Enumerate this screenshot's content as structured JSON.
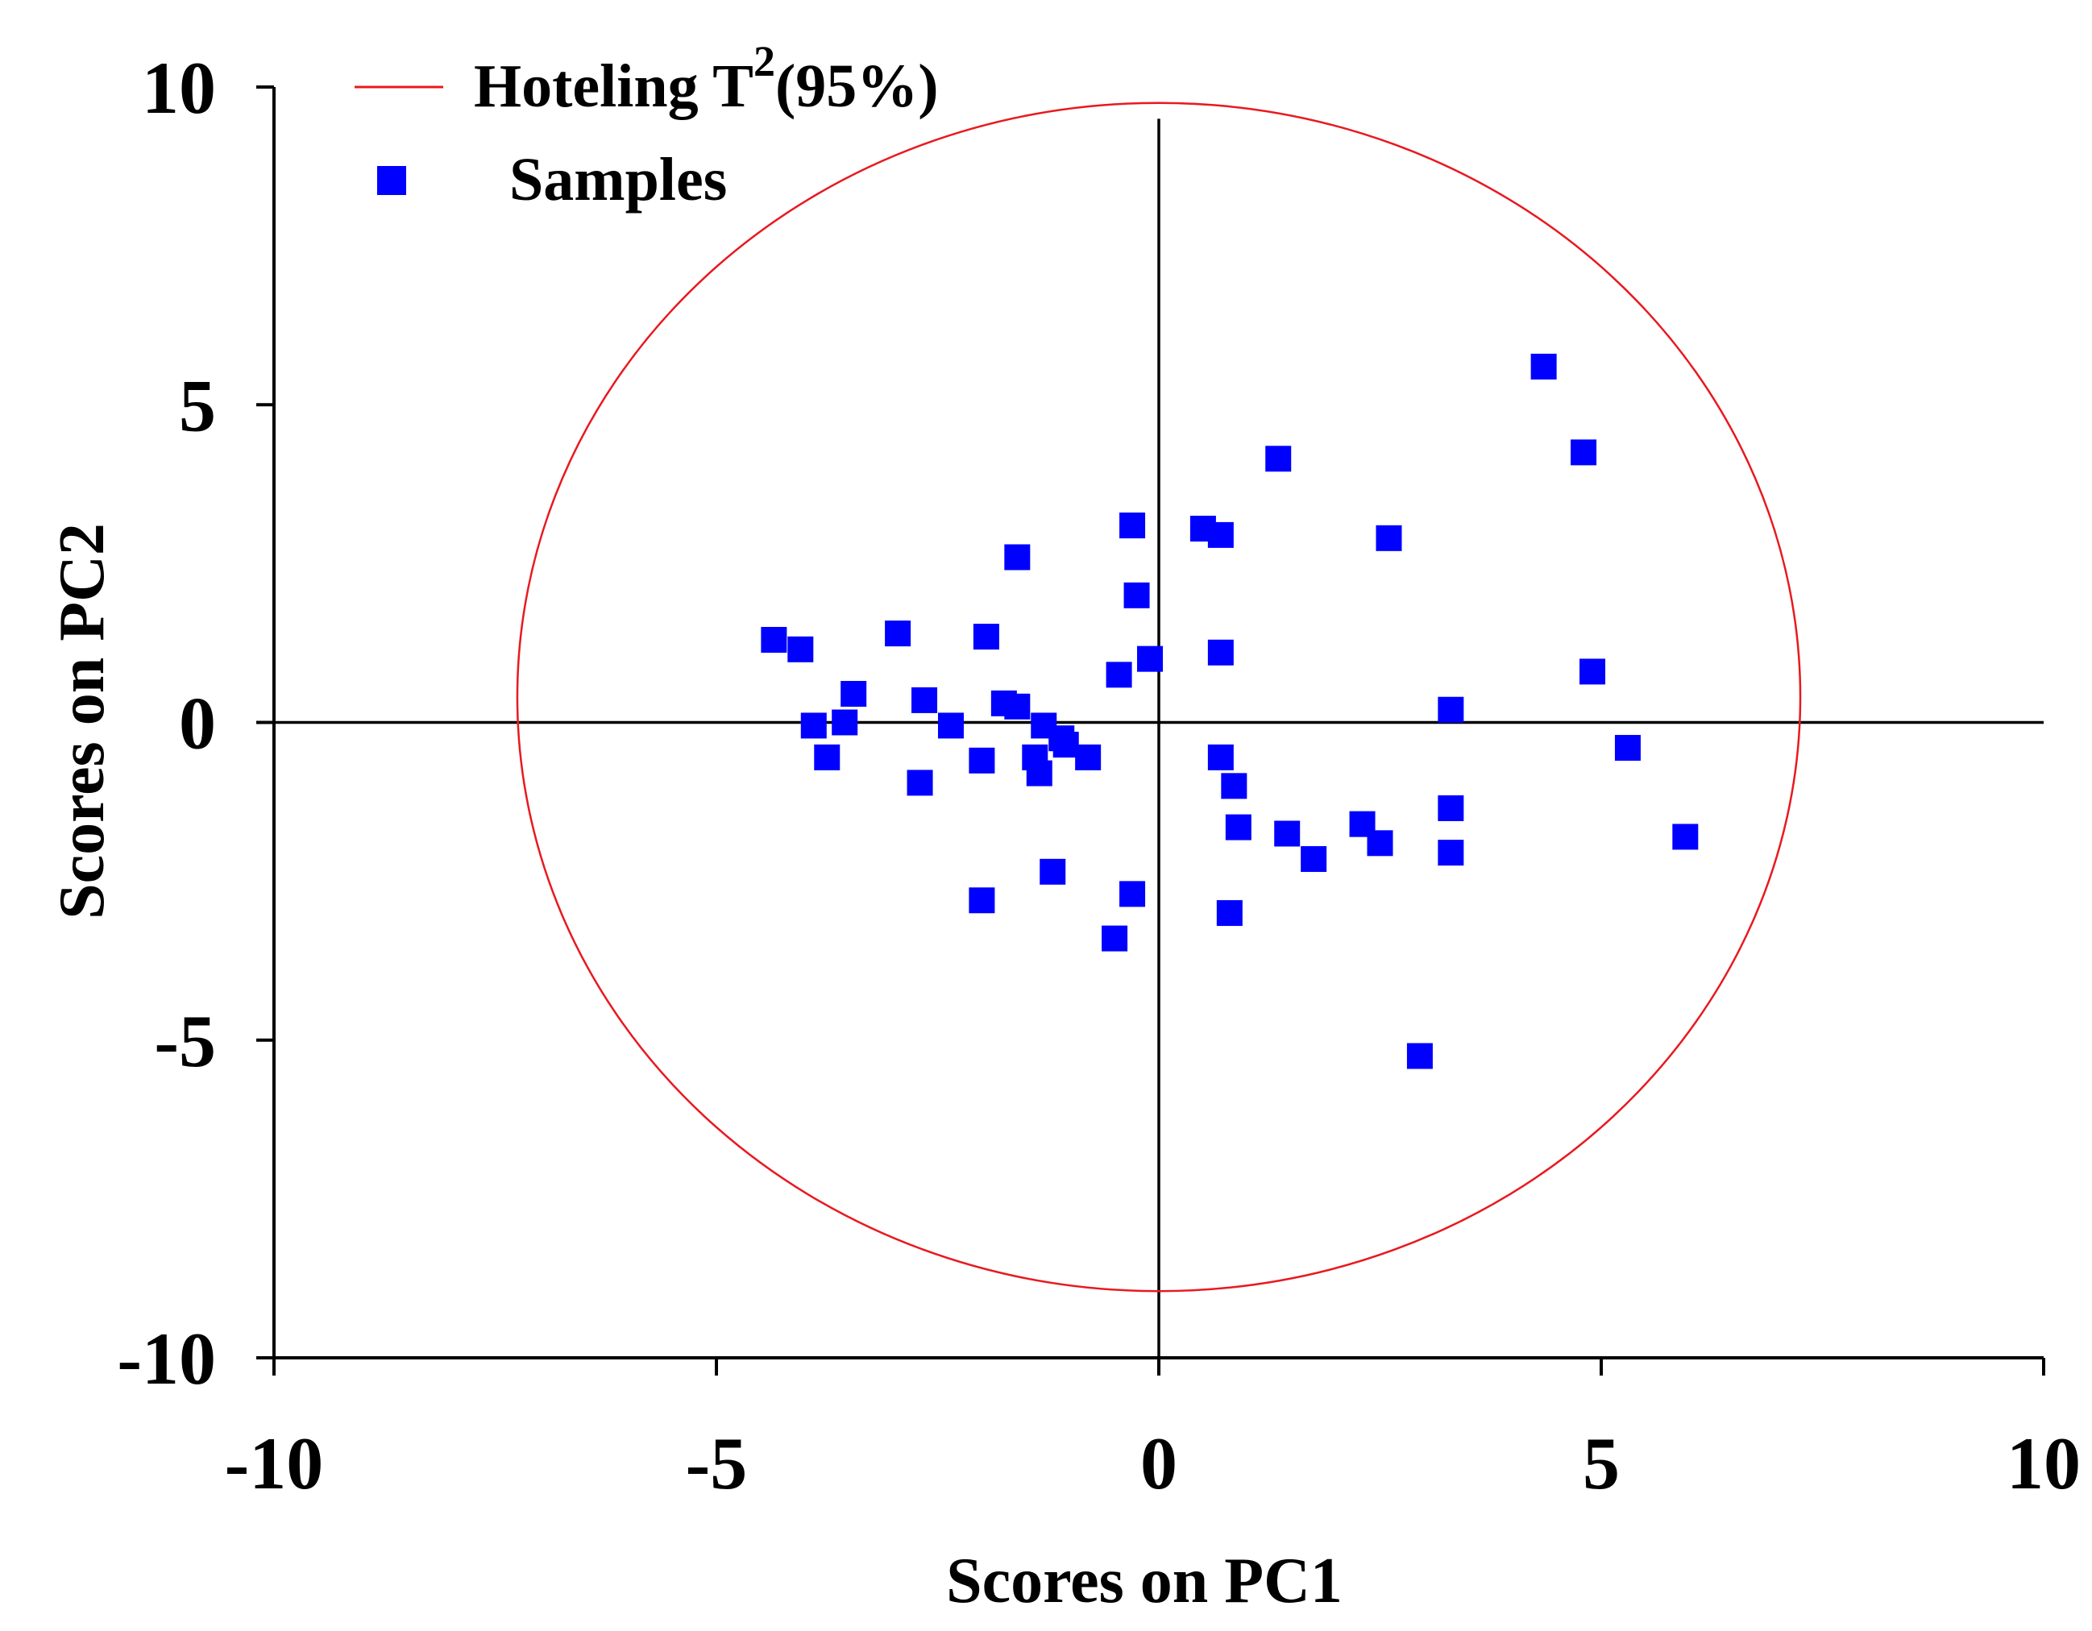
{
  "chart_data": {
    "type": "scatter",
    "title": "",
    "xlabel": "Scores on PC1",
    "ylabel": "Scores on PC2",
    "xlim": [
      -10,
      10
    ],
    "ylim": [
      -10,
      10
    ],
    "xticks": [
      -10,
      -5,
      0,
      5,
      10
    ],
    "yticks": [
      -10,
      -5,
      0,
      5,
      10
    ],
    "xtick_labels": [
      "-10",
      "-5",
      "0",
      "5",
      "10"
    ],
    "ytick_labels": [
      "-10",
      "-5",
      "0",
      "5",
      "10"
    ],
    "grid": false,
    "legend_position": "top-left",
    "legend": {
      "ellipse_label_main": "Hoteling T",
      "ellipse_label_sup": "2",
      "ellipse_label_tail": "(95%)",
      "samples_label": "Samples"
    },
    "colors": {
      "ellipse": "#e8191f",
      "samples": "#0000ff",
      "axes": "#000000"
    },
    "ellipse": {
      "name": "Hoteling T2(95%)",
      "center": [
        0,
        0.4
      ],
      "semi_axis_x": 7.25,
      "semi_axis_y": 9.35
    },
    "series": [
      {
        "name": "Samples",
        "marker": "square",
        "points": [
          [
            4.35,
            5.6
          ],
          [
            4.8,
            4.25
          ],
          [
            1.35,
            4.15
          ],
          [
            2.6,
            2.9
          ],
          [
            0.5,
            3.05
          ],
          [
            0.7,
            2.95
          ],
          [
            -0.3,
            3.1
          ],
          [
            -1.6,
            2.6
          ],
          [
            -0.25,
            2.0
          ],
          [
            -4.35,
            1.3
          ],
          [
            -4.05,
            1.15
          ],
          [
            -2.95,
            1.4
          ],
          [
            -1.95,
            1.35
          ],
          [
            0.7,
            1.1
          ],
          [
            -0.1,
            1.0
          ],
          [
            -0.45,
            0.75
          ],
          [
            4.9,
            0.8
          ],
          [
            3.3,
            0.2
          ],
          [
            -3.45,
            0.45
          ],
          [
            -2.65,
            0.35
          ],
          [
            -1.75,
            0.3
          ],
          [
            -1.6,
            0.25
          ],
          [
            -3.9,
            -0.05
          ],
          [
            -3.55,
            0.0
          ],
          [
            -2.35,
            -0.05
          ],
          [
            -1.3,
            -0.05
          ],
          [
            -1.1,
            -0.25
          ],
          [
            -1.05,
            -0.35
          ],
          [
            -0.8,
            -0.55
          ],
          [
            -1.4,
            -0.55
          ],
          [
            -1.35,
            -0.8
          ],
          [
            -2.0,
            -0.6
          ],
          [
            -3.75,
            -0.55
          ],
          [
            -2.7,
            -0.95
          ],
          [
            0.7,
            -0.55
          ],
          [
            0.85,
            -1.0
          ],
          [
            0.9,
            -1.65
          ],
          [
            1.45,
            -1.75
          ],
          [
            1.75,
            -2.15
          ],
          [
            2.3,
            -1.6
          ],
          [
            2.5,
            -1.9
          ],
          [
            3.3,
            -1.35
          ],
          [
            3.3,
            -2.05
          ],
          [
            5.3,
            -0.4
          ],
          [
            5.95,
            -1.8
          ],
          [
            -1.2,
            -2.35
          ],
          [
            -2.0,
            -2.8
          ],
          [
            -0.3,
            -2.7
          ],
          [
            -0.5,
            -3.4
          ],
          [
            0.8,
            -3.0
          ],
          [
            2.95,
            -5.25
          ]
        ]
      }
    ]
  }
}
